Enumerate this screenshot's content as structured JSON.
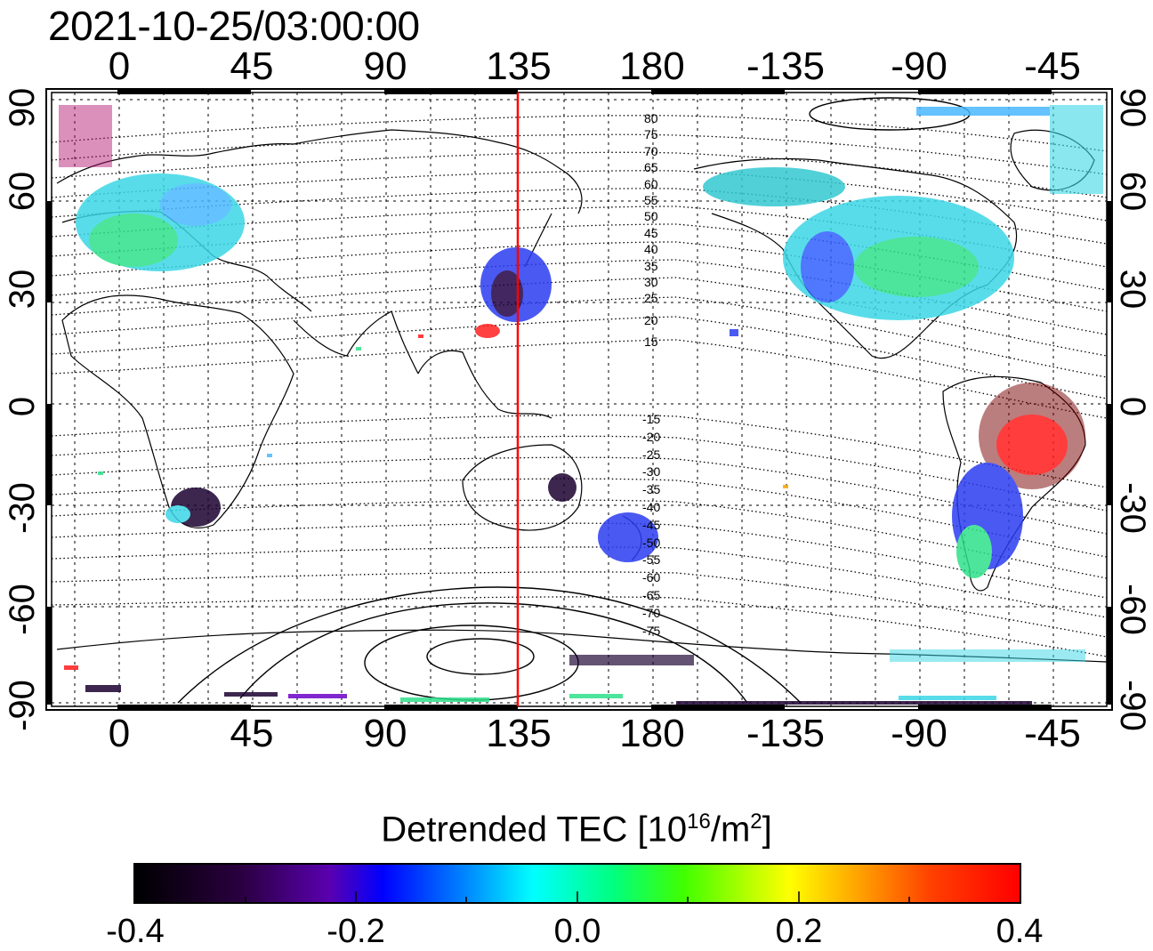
{
  "title": "2021-10-25/03:00:00",
  "lon_ticks": [
    "0",
    "45",
    "90",
    "135",
    "180",
    "-135",
    "-90",
    "-45"
  ],
  "lat_ticks": [
    "90",
    "60",
    "30",
    "0",
    "-30",
    "-60",
    "-90"
  ],
  "contour_labels_north": [
    "80",
    "75",
    "70",
    "65",
    "60",
    "55",
    "50",
    "45",
    "40",
    "35",
    "30",
    "25",
    "20",
    "15"
  ],
  "contour_labels_south": [
    "-15",
    "-20",
    "-25",
    "-30",
    "-35",
    "-40",
    "-45",
    "-50",
    "-55",
    "-60",
    "-65",
    "-70",
    "-75"
  ],
  "colorbar": {
    "label": "Detrended TEC  [10",
    "label_sup": "16",
    "label_unit": "/m",
    "label_sup2": "2",
    "label_end": "]",
    "ticks": [
      "-0.4",
      "-0.2",
      "0.0",
      "0.2",
      "0.4"
    ]
  },
  "colors": {
    "meridian_line": "#ff0000"
  }
}
